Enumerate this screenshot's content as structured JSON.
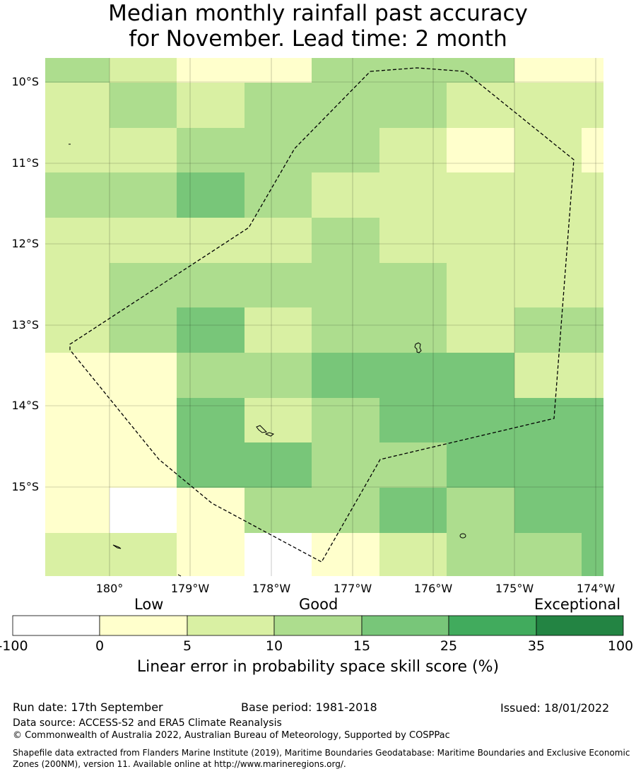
{
  "title": {
    "line1": "Median monthly rainfall past accuracy",
    "line2": "for November. Lead time: 2 month"
  },
  "map": {
    "lon_labels": [
      "180°",
      "179°W",
      "178°W",
      "177°W",
      "176°W",
      "175°W",
      "174°W"
    ],
    "lat_labels": [
      "10°S",
      "11°S",
      "12°S",
      "13°S",
      "14°S",
      "15°S"
    ],
    "grid_rows": [
      [
        "15",
        "10",
        "5",
        "5",
        "15",
        "15",
        "15",
        "5"
      ],
      [
        "10",
        "15",
        "10",
        "15",
        "15",
        "15",
        "10",
        "10"
      ],
      [
        "10",
        "10",
        "15",
        "15",
        "15",
        "10",
        "5",
        "10"
      ],
      [
        "15",
        "15",
        "25",
        "15",
        "10",
        "10",
        "10",
        "10"
      ],
      [
        "10",
        "10",
        "10",
        "10",
        "15",
        "10",
        "10",
        "10"
      ],
      [
        "10",
        "15",
        "15",
        "15",
        "15",
        "15",
        "10",
        "10"
      ],
      [
        "10",
        "15",
        "25",
        "10",
        "15",
        "15",
        "10",
        "15"
      ],
      [
        "5",
        "5",
        "15",
        "15",
        "25",
        "25",
        "25",
        "10"
      ],
      [
        "5",
        "5",
        "25",
        "10",
        "15",
        "25",
        "25",
        "25"
      ],
      [
        "5",
        "5",
        "25",
        "25",
        "15",
        "15",
        "25",
        "25"
      ],
      [
        "5",
        "neg",
        "5",
        "15",
        "15",
        "25",
        "15",
        "25"
      ],
      [
        "10",
        "10",
        "5",
        "neg",
        "5",
        "10",
        "15",
        "15"
      ]
    ],
    "last_column_overrides": [
      [
        "5",
        "10",
        "5",
        "10",
        "10",
        "10",
        "15",
        "10",
        "25",
        "25",
        "25",
        "25"
      ]
    ],
    "colors": {
      "neg": "#ffffff",
      "5": "#ffffcc",
      "10": "#d9f0a3",
      "15": "#addd8e",
      "25": "#78c679",
      "35": "#41ab5d",
      "100": "#238443"
    },
    "eez_boundary": "dashed"
  },
  "colorbar": {
    "categories": {
      "low": "Low",
      "good": "Good",
      "exceptional": "Exceptional"
    },
    "ticks": [
      "-100",
      "0",
      "5",
      "10",
      "15",
      "25",
      "35",
      "100"
    ],
    "segment_colors": [
      "#ffffff",
      "#ffffcc",
      "#d9f0a3",
      "#addd8e",
      "#78c679",
      "#41ab5d",
      "#238443"
    ],
    "title": "Linear error in probability space skill score (%)"
  },
  "footer": {
    "run_date": "Run date: 17th September",
    "base_period": "Base period: 1981-2018",
    "issued": "Issued: 18/01/2022",
    "data_source": "Data source: ACCESS-S2 and ERA5 Climate Reanalysis",
    "copyright": "© Commonwealth of Australia 2022, Australian Bureau of Meteorology, Supported by COSPPac",
    "shapefile": "Shapefile data extracted from Flanders Marine Institute (2019), Maritime Boundaries Geodatabase: Maritime Boundaries and Exclusive Economic Zones (200NM), version 11. Available online at http://www.marineregions.org/."
  }
}
